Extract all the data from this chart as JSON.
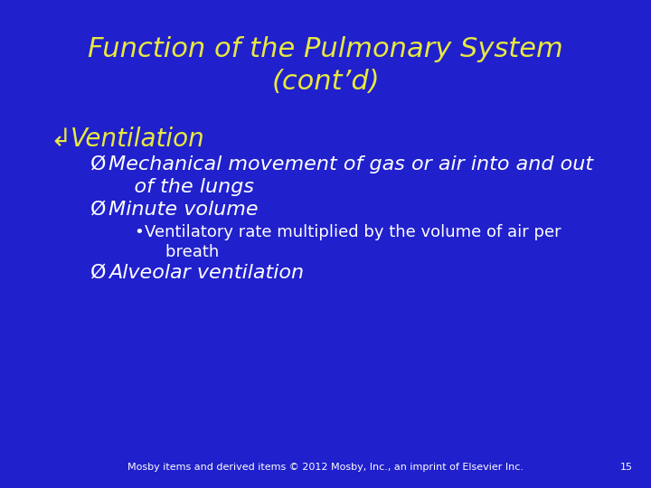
{
  "background_color": "#2020cc",
  "title_line1": "Function of the Pulmonary System",
  "title_line2": "(cont’d)",
  "title_color": "#e8e840",
  "title_fontsize": 22,
  "content_font": "DejaVu Sans",
  "bullet1": "Ventilation",
  "bullet1_symbol": "↲",
  "bullet1_color": "#e8e840",
  "bullet1_fontsize": 20,
  "sub_bullet_color": "#ffffff",
  "sub_bullet_fontsize": 16,
  "sub_sub_bullet_fontsize": 13,
  "sub_bullet_symbol": "Ø",
  "footer_text": "Mosby items and derived items © 2012 Mosby, Inc., an imprint of Elsevier Inc.",
  "footer_page": "15",
  "footer_color": "#ffffff",
  "footer_fontsize": 8
}
